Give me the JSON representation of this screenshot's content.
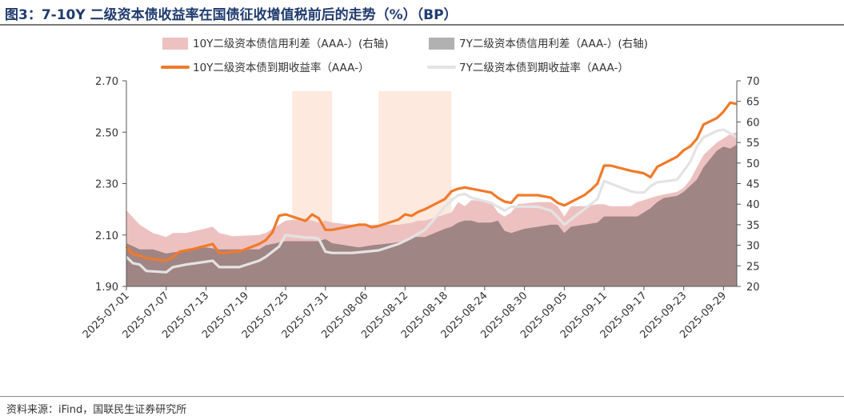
{
  "title": "图3：7-10Y 二级资本债收益率在国债征收增值税前后的走势（%）（BP）",
  "source": "资料来源：iFind，国联民生证券研究所",
  "colors": {
    "spread10": "#eec1c1",
    "spread7": "#b1b1b1",
    "overlap": "#a08585",
    "yield10": "#f07a2a",
    "yield7": "#e3e3e3",
    "highlight": "#fde3d4"
  },
  "chart_data": {
    "type": "line",
    "legend": [
      "10Y二级资本债信用利差（AAA-）(右轴)",
      "7Y二级资本债信用利差（AAA-）(右轴)",
      "10Y二级资本债到期收益率（AAA-）",
      "7Y二级资本债到期收益率（AAA-）"
    ],
    "legend_position": "top",
    "x_start": "2025-07-01",
    "x_end": "2025-10-01",
    "x_tick_labels": [
      "2025-07-01",
      "2025-07-07",
      "2025-07-13",
      "2025-07-19",
      "2025-07-25",
      "2025-07-31",
      "2025-08-06",
      "2025-08-12",
      "2025-08-18",
      "2025-08-24",
      "2025-08-30",
      "2025-09-05",
      "2025-09-11",
      "2025-09-17",
      "2025-09-23",
      "2025-09-29"
    ],
    "left_axis": {
      "ylim": [
        1.9,
        2.7
      ],
      "ticks": [
        "1.90",
        "2.10",
        "2.30",
        "2.50",
        "2.70"
      ]
    },
    "right_axis": {
      "ylim": [
        20,
        70
      ],
      "ticks": [
        "20",
        "25",
        "30",
        "35",
        "40",
        "45",
        "50",
        "55",
        "60",
        "65",
        "70"
      ]
    },
    "highlight_periods": [
      [
        "2025-07-26",
        "2025-08-01"
      ],
      [
        "2025-08-08",
        "2025-08-19"
      ]
    ],
    "series": [
      {
        "name": "10Y二级资本债信用利差（AAA-）(右轴)",
        "axis": "right",
        "type": "area",
        "x": [
          "2025-07-01",
          "2025-07-03",
          "2025-07-05",
          "2025-07-07",
          "2025-07-08",
          "2025-07-10",
          "2025-07-14",
          "2025-07-15",
          "2025-07-17",
          "2025-07-21",
          "2025-07-22",
          "2025-07-25",
          "2025-07-28",
          "2025-07-30",
          "2025-07-31",
          "2025-08-01",
          "2025-08-04",
          "2025-08-06",
          "2025-08-07",
          "2025-08-11",
          "2025-08-13",
          "2025-08-14",
          "2025-08-15",
          "2025-08-18",
          "2025-08-19",
          "2025-08-20",
          "2025-08-21",
          "2025-08-22",
          "2025-08-25",
          "2025-08-26",
          "2025-08-27",
          "2025-08-28",
          "2025-08-29",
          "2025-09-01",
          "2025-09-03",
          "2025-09-04",
          "2025-09-05",
          "2025-09-06",
          "2025-09-08",
          "2025-09-10",
          "2025-09-11",
          "2025-09-12",
          "2025-09-15",
          "2025-09-16",
          "2025-09-17",
          "2025-09-18",
          "2025-09-19",
          "2025-09-22",
          "2025-09-23",
          "2025-09-24",
          "2025-09-25",
          "2025-09-26",
          "2025-09-28",
          "2025-09-29",
          "2025-09-30",
          "2025-10-01"
        ],
        "values": [
          38.5,
          35,
          33,
          32,
          33,
          33,
          34.5,
          33,
          32.2,
          32.5,
          33,
          36,
          36.5,
          35.5,
          36,
          35.5,
          35,
          34.8,
          35,
          35,
          35.5,
          36,
          36,
          37.5,
          38,
          40.5,
          39.5,
          41,
          40.5,
          38,
          37,
          38,
          40,
          40.5,
          40.5,
          39.5,
          37,
          39.5,
          39.5,
          40,
          40,
          39.5,
          39.5,
          40.5,
          41,
          41.5,
          42,
          43,
          44,
          46,
          49,
          52,
          55,
          56,
          57,
          57.5
        ]
      },
      {
        "name": "7Y二级资本债信用利差（AAA-）(右轴)",
        "axis": "right",
        "type": "area",
        "x": [
          "2025-07-01",
          "2025-07-03",
          "2025-07-05",
          "2025-07-07",
          "2025-07-09",
          "2025-07-11",
          "2025-07-13",
          "2025-07-15",
          "2025-07-17",
          "2025-07-19",
          "2025-07-21",
          "2025-07-22",
          "2025-07-25",
          "2025-07-28",
          "2025-07-30",
          "2025-07-31",
          "2025-08-01",
          "2025-08-03",
          "2025-08-05",
          "2025-08-07",
          "2025-08-10",
          "2025-08-12",
          "2025-08-13",
          "2025-08-15",
          "2025-08-18",
          "2025-08-19",
          "2025-08-20",
          "2025-08-21",
          "2025-08-22",
          "2025-08-23",
          "2025-08-25",
          "2025-08-26",
          "2025-08-27",
          "2025-08-28",
          "2025-08-29",
          "2025-08-30",
          "2025-09-01",
          "2025-09-03",
          "2025-09-04",
          "2025-09-05",
          "2025-09-06",
          "2025-09-08",
          "2025-09-10",
          "2025-09-11",
          "2025-09-12",
          "2025-09-15",
          "2025-09-16",
          "2025-09-17",
          "2025-09-18",
          "2025-09-19",
          "2025-09-20",
          "2025-09-22",
          "2025-09-23",
          "2025-09-25",
          "2025-09-26",
          "2025-09-28",
          "2025-09-29",
          "2025-09-30",
          "2025-10-01"
        ],
        "values": [
          30.5,
          29,
          29,
          28,
          28.5,
          29,
          29.5,
          29,
          29,
          29,
          29,
          30,
          31,
          31,
          31,
          31.5,
          30.5,
          30,
          29.5,
          30,
          30.5,
          31,
          32,
          32,
          34,
          34.5,
          35.5,
          36,
          36,
          35.5,
          35.5,
          36,
          33.5,
          33,
          33.5,
          34,
          34.5,
          35,
          35,
          33,
          34.5,
          35,
          35.5,
          37,
          37,
          37,
          37,
          38,
          39,
          40.5,
          41.5,
          42,
          43,
          46,
          49,
          53,
          54,
          53.5,
          54.5
        ]
      },
      {
        "name": "10Y二级资本债到期收益率（AAA-）",
        "axis": "left",
        "type": "line",
        "x": [
          "2025-07-01",
          "2025-07-02",
          "2025-07-03",
          "2025-07-04",
          "2025-07-07",
          "2025-07-08",
          "2025-07-09",
          "2025-07-10",
          "2025-07-11",
          "2025-07-14",
          "2025-07-15",
          "2025-07-16",
          "2025-07-17",
          "2025-07-18",
          "2025-07-21",
          "2025-07-22",
          "2025-07-23",
          "2025-07-24",
          "2025-07-25",
          "2025-07-28",
          "2025-07-29",
          "2025-07-30",
          "2025-07-31",
          "2025-08-01",
          "2025-08-04",
          "2025-08-05",
          "2025-08-06",
          "2025-08-07",
          "2025-08-08",
          "2025-08-11",
          "2025-08-12",
          "2025-08-13",
          "2025-08-14",
          "2025-08-15",
          "2025-08-18",
          "2025-08-19",
          "2025-08-20",
          "2025-08-21",
          "2025-08-22",
          "2025-08-25",
          "2025-08-26",
          "2025-08-27",
          "2025-08-28",
          "2025-08-29",
          "2025-09-01",
          "2025-09-02",
          "2025-09-03",
          "2025-09-04",
          "2025-09-05",
          "2025-09-08",
          "2025-09-09",
          "2025-09-10",
          "2025-09-11",
          "2025-09-12",
          "2025-09-15",
          "2025-09-16",
          "2025-09-17",
          "2025-09-18",
          "2025-09-19",
          "2025-09-22",
          "2025-09-23",
          "2025-09-24",
          "2025-09-25",
          "2025-09-26",
          "2025-09-28",
          "2025-09-29",
          "2025-09-30",
          "2025-10-01"
        ],
        "values": [
          2.055,
          2.025,
          2.02,
          2.01,
          2.0,
          2.015,
          2.035,
          2.04,
          2.045,
          2.065,
          2.03,
          2.03,
          2.035,
          2.035,
          2.065,
          2.08,
          2.11,
          2.175,
          2.18,
          2.155,
          2.18,
          2.165,
          2.12,
          2.12,
          2.135,
          2.14,
          2.14,
          2.13,
          2.135,
          2.16,
          2.18,
          2.175,
          2.19,
          2.2,
          2.24,
          2.27,
          2.28,
          2.285,
          2.28,
          2.265,
          2.245,
          2.23,
          2.225,
          2.255,
          2.255,
          2.25,
          2.245,
          2.225,
          2.215,
          2.255,
          2.275,
          2.3,
          2.37,
          2.37,
          2.35,
          2.345,
          2.34,
          2.325,
          2.365,
          2.405,
          2.43,
          2.445,
          2.475,
          2.53,
          2.555,
          2.58,
          2.615,
          2.61
        ]
      },
      {
        "name": "7Y二级资本债到期收益率（AAA-）",
        "axis": "left",
        "type": "line",
        "x": [
          "2025-07-01",
          "2025-07-02",
          "2025-07-03",
          "2025-07-04",
          "2025-07-07",
          "2025-07-08",
          "2025-07-10",
          "2025-07-14",
          "2025-07-15",
          "2025-07-18",
          "2025-07-21",
          "2025-07-22",
          "2025-07-24",
          "2025-07-25",
          "2025-07-28",
          "2025-07-29",
          "2025-07-30",
          "2025-07-31",
          "2025-08-01",
          "2025-08-04",
          "2025-08-06",
          "2025-08-08",
          "2025-08-11",
          "2025-08-13",
          "2025-08-15",
          "2025-08-18",
          "2025-08-19",
          "2025-08-20",
          "2025-08-21",
          "2025-08-22",
          "2025-08-25",
          "2025-08-27",
          "2025-08-28",
          "2025-08-29",
          "2025-09-01",
          "2025-09-03",
          "2025-09-04",
          "2025-09-05",
          "2025-09-08",
          "2025-09-10",
          "2025-09-11",
          "2025-09-12",
          "2025-09-15",
          "2025-09-16",
          "2025-09-17",
          "2025-09-18",
          "2025-09-19",
          "2025-09-22",
          "2025-09-23",
          "2025-09-24",
          "2025-09-25",
          "2025-09-26",
          "2025-09-28",
          "2025-09-29",
          "2025-09-30",
          "2025-10-01"
        ],
        "values": [
          2.015,
          1.99,
          1.985,
          1.96,
          1.955,
          1.975,
          1.985,
          2.0,
          1.975,
          1.975,
          2.0,
          2.015,
          2.055,
          2.1,
          2.09,
          2.09,
          2.085,
          2.035,
          2.03,
          2.03,
          2.035,
          2.04,
          2.065,
          2.09,
          2.12,
          2.21,
          2.235,
          2.255,
          2.26,
          2.245,
          2.225,
          2.195,
          2.21,
          2.21,
          2.21,
          2.195,
          2.17,
          2.14,
          2.2,
          2.24,
          2.31,
          2.3,
          2.27,
          2.265,
          2.265,
          2.29,
          2.305,
          2.315,
          2.35,
          2.385,
          2.445,
          2.48,
          2.505,
          2.51,
          2.495,
          2.48
        ]
      }
    ]
  }
}
